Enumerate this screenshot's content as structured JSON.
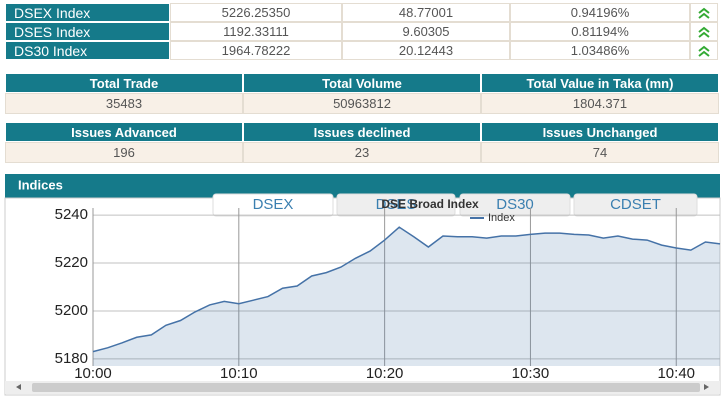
{
  "index_table": {
    "rows": [
      [
        "DSEX Index",
        "5226.25350",
        "48.77001",
        "0.94196%"
      ],
      [
        "DSES Index",
        "1192.33111",
        "9.60305",
        "0.81194%"
      ],
      [
        "DS30 Index",
        "1964.78222",
        "20.12443",
        "1.03486%"
      ]
    ]
  },
  "summary_table": {
    "headers": [
      "Total Trade",
      "Total Volume",
      "Total Value in Taka (mn)"
    ],
    "values": [
      "35483",
      "50963812",
      "1804.371"
    ]
  },
  "issues_table": {
    "headers": [
      "Issues Advanced",
      "Issues declined",
      "Issues Unchanged"
    ],
    "values": [
      "196",
      "23",
      "74"
    ]
  },
  "indices": {
    "title": "Indices",
    "tabs": [
      "DSEX",
      "DSES",
      "DS30",
      "CDSET"
    ],
    "tooltip": "DSE Broad Index"
  },
  "chart_data": {
    "type": "area",
    "x": [
      "10:00",
      "10:01",
      "10:02",
      "10:03",
      "10:04",
      "10:05",
      "10:06",
      "10:07",
      "10:08",
      "10:09",
      "10:10",
      "10:11",
      "10:12",
      "10:13",
      "10:14",
      "10:15",
      "10:16",
      "10:17",
      "10:18",
      "10:19",
      "10:20",
      "10:21",
      "10:22",
      "10:23",
      "10:24",
      "10:25",
      "10:26",
      "10:27",
      "10:28",
      "10:29",
      "10:30",
      "10:31",
      "10:32",
      "10:33",
      "10:34",
      "10:35",
      "10:36",
      "10:37",
      "10:38",
      "10:39",
      "10:40",
      "10:41",
      "10:42",
      "10:43"
    ],
    "series": [
      {
        "name": "Index",
        "color": "#4572a7",
        "values": [
          5183,
          5184.6,
          5186.7,
          5189,
          5190,
          5194,
          5196,
          5199.6,
          5202.5,
          5204,
          5203,
          5204.5,
          5206,
          5209.5,
          5210.4,
          5214.6,
          5216,
          5218.3,
          5222,
          5225,
          5229.6,
          5235,
          5231,
          5226.7,
          5231.3,
          5231,
          5231,
          5230.4,
          5231.3,
          5231.3,
          5232,
          5232.5,
          5232.5,
          5232,
          5231.7,
          5230.4,
          5231.3,
          5230,
          5229.6,
          5227.5,
          5226.3,
          5225.4,
          5228.8,
          5228
        ]
      }
    ],
    "xlim": [
      "10:00",
      "10:43"
    ],
    "xticks": [
      "10:00",
      "10:10",
      "10:20",
      "10:30",
      "10:40"
    ],
    "ylim": [
      5177,
      5243
    ],
    "yticks": [
      5180,
      5200,
      5220,
      5240
    ],
    "grid": true
  }
}
